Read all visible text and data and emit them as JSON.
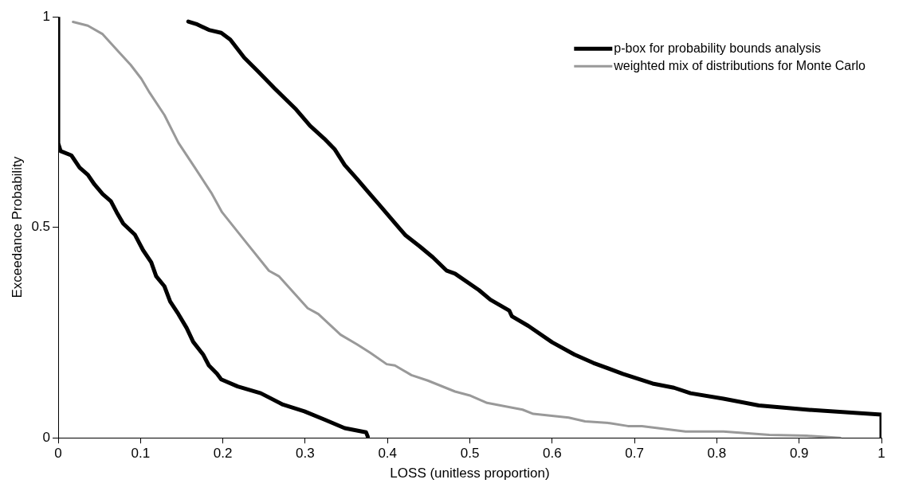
{
  "chart_data": {
    "type": "line",
    "xlabel": "LOSS (unitless proportion)",
    "ylabel": "Exceedance Probability",
    "xlim": [
      0,
      1
    ],
    "ylim": [
      0,
      1
    ],
    "xticks": [
      0,
      0.1,
      0.2,
      0.3,
      0.4,
      0.5,
      0.6,
      0.7,
      0.8,
      0.9,
      1
    ],
    "yticks": [
      0,
      0.5,
      1
    ],
    "grid": false,
    "legend": "top right",
    "marker": "none",
    "series": [
      {
        "name": "p-box for probability bounds analysis",
        "color": "#000000",
        "x": [
          0.158,
          0.169,
          0.183,
          0.198,
          0.209,
          0.226,
          0.243,
          0.263,
          0.289,
          0.306,
          0.323,
          0.336,
          0.348,
          0.363,
          0.376,
          0.389,
          0.413,
          0.422,
          0.439,
          0.455,
          0.472,
          0.482,
          0.511,
          0.525,
          0.548,
          0.551,
          0.571,
          0.6,
          0.627,
          0.65,
          0.686,
          0.722,
          0.748,
          0.768,
          0.808,
          0.851,
          0.909,
          1,
          1
        ],
        "values": [
          0.989,
          0.982,
          0.969,
          0.962,
          0.946,
          0.903,
          0.87,
          0.83,
          0.78,
          0.741,
          0.711,
          0.685,
          0.648,
          0.615,
          0.585,
          0.556,
          0.501,
          0.481,
          0.455,
          0.429,
          0.397,
          0.39,
          0.351,
          0.328,
          0.302,
          0.289,
          0.266,
          0.227,
          0.198,
          0.178,
          0.152,
          0.129,
          0.119,
          0.106,
          0.093,
          0.077,
          0.067,
          0.055,
          0
        ]
      },
      {
        "color": "#000000",
        "x": [
          0,
          0,
          0.003,
          0.016,
          0.026,
          0.036,
          0.044,
          0.054,
          0.064,
          0.071,
          0.079,
          0.093,
          0.103,
          0.113,
          0.119,
          0.129,
          0.136,
          0.146,
          0.156,
          0.164,
          0.176,
          0.183,
          0.193,
          0.198,
          0.218,
          0.246,
          0.273,
          0.299,
          0.324,
          0.348,
          0.374,
          0.376
        ],
        "values": [
          1,
          0.7,
          0.681,
          0.671,
          0.642,
          0.625,
          0.602,
          0.579,
          0.562,
          0.536,
          0.509,
          0.483,
          0.446,
          0.417,
          0.384,
          0.36,
          0.324,
          0.294,
          0.261,
          0.228,
          0.198,
          0.172,
          0.152,
          0.139,
          0.122,
          0.106,
          0.079,
          0.063,
          0.043,
          0.023,
          0.013,
          0.003
        ]
      },
      {
        "name": "weighted mix of distributions for Monte Carlo",
        "color": "#999999",
        "x": [
          0.018,
          0.036,
          0.054,
          0.074,
          0.088,
          0.101,
          0.111,
          0.129,
          0.146,
          0.166,
          0.186,
          0.199,
          0.226,
          0.256,
          0.268,
          0.303,
          0.316,
          0.343,
          0.363,
          0.379,
          0.399,
          0.409,
          0.429,
          0.449,
          0.482,
          0.501,
          0.521,
          0.564,
          0.577,
          0.62,
          0.64,
          0.67,
          0.692,
          0.709,
          0.762,
          0.808,
          0.864,
          0.909,
          0.95
        ],
        "values": [
          0.988,
          0.979,
          0.959,
          0.916,
          0.886,
          0.853,
          0.82,
          0.767,
          0.701,
          0.642,
          0.582,
          0.536,
          0.47,
          0.397,
          0.384,
          0.308,
          0.294,
          0.245,
          0.222,
          0.202,
          0.175,
          0.172,
          0.149,
          0.136,
          0.11,
          0.1,
          0.083,
          0.067,
          0.057,
          0.048,
          0.039,
          0.035,
          0.028,
          0.028,
          0.015,
          0.015,
          0.007,
          0.005,
          0
        ]
      }
    ]
  }
}
